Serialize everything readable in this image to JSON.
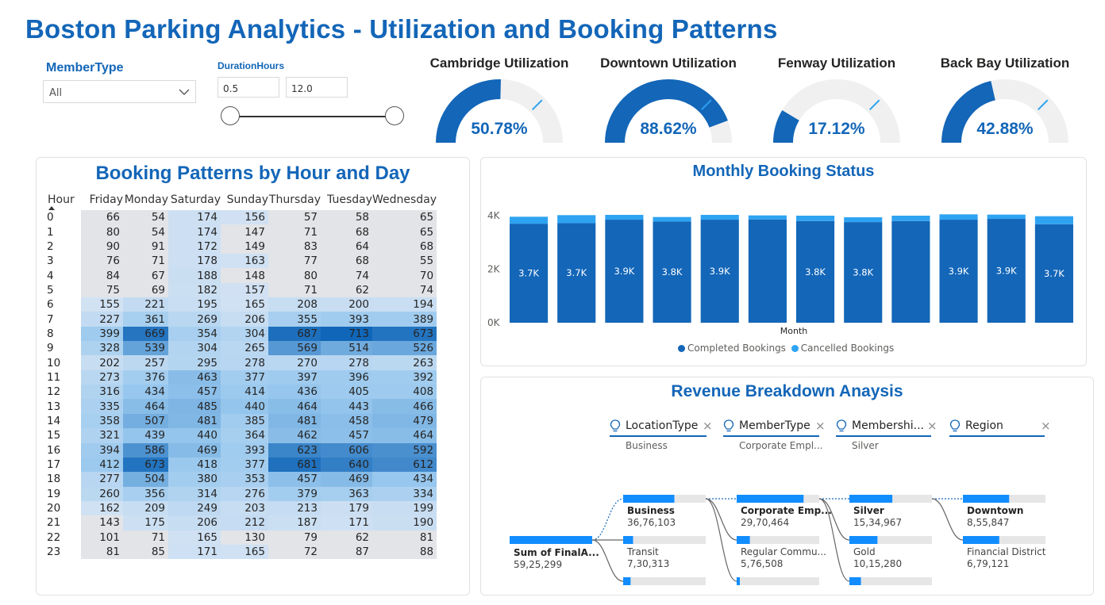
{
  "title": "Boston Parking Analytics - Utilization and Booking Patterns",
  "slicers": {
    "member_type_label": "MemberType",
    "member_type_value": "All",
    "duration_label": "DurationHours",
    "duration_min": "0.5",
    "duration_max": "12.0"
  },
  "gauges": [
    {
      "title": "Cambridge Utilization",
      "value_text": "50.78%",
      "fraction": 0.5078
    },
    {
      "title": "Downtown Utilization",
      "value_text": "88.62%",
      "fraction": 0.8862
    },
    {
      "title": "Fenway Utilization",
      "value_text": "17.12%",
      "fraction": 0.1712
    },
    {
      "title": "Back Bay Utilization",
      "value_text": "42.88%",
      "fraction": 0.4288
    }
  ],
  "heatmap": {
    "title": "Booking Patterns by Hour and Day",
    "columns": [
      "Hour",
      "Friday",
      "Monday",
      "Saturday",
      "Sunday",
      "Thursday",
      "Tuesday",
      "Wednesday"
    ],
    "rows": [
      [
        "0",
        66,
        54,
        174,
        156,
        57,
        58,
        65
      ],
      [
        "1",
        80,
        54,
        174,
        147,
        71,
        68,
        65
      ],
      [
        "2",
        90,
        91,
        172,
        149,
        83,
        64,
        68
      ],
      [
        "3",
        76,
        71,
        178,
        163,
        77,
        68,
        55
      ],
      [
        "4",
        84,
        67,
        188,
        148,
        80,
        74,
        70
      ],
      [
        "5",
        75,
        69,
        182,
        157,
        71,
        62,
        74
      ],
      [
        "6",
        155,
        221,
        195,
        165,
        208,
        200,
        194
      ],
      [
        "7",
        227,
        361,
        269,
        206,
        355,
        393,
        389
      ],
      [
        "8",
        399,
        669,
        354,
        304,
        687,
        713,
        673
      ],
      [
        "9",
        328,
        539,
        304,
        265,
        569,
        514,
        526
      ],
      [
        "10",
        202,
        257,
        295,
        278,
        270,
        278,
        263
      ],
      [
        "11",
        273,
        376,
        463,
        377,
        397,
        396,
        392
      ],
      [
        "12",
        316,
        434,
        457,
        414,
        436,
        405,
        408
      ],
      [
        "13",
        335,
        464,
        485,
        440,
        464,
        443,
        466
      ],
      [
        "14",
        358,
        507,
        481,
        385,
        481,
        458,
        479
      ],
      [
        "15",
        321,
        439,
        440,
        364,
        462,
        457,
        464
      ],
      [
        "16",
        394,
        586,
        469,
        393,
        623,
        606,
        592
      ],
      [
        "17",
        412,
        673,
        418,
        377,
        681,
        640,
        612
      ],
      [
        "18",
        277,
        504,
        380,
        353,
        457,
        469,
        434
      ],
      [
        "19",
        260,
        356,
        314,
        276,
        379,
        363,
        334
      ],
      [
        "20",
        162,
        209,
        249,
        203,
        213,
        179,
        199
      ],
      [
        "21",
        143,
        175,
        206,
        212,
        187,
        171,
        190
      ],
      [
        "22",
        101,
        71,
        165,
        130,
        79,
        62,
        81
      ],
      [
        "23",
        81,
        85,
        171,
        165,
        72,
        87,
        88
      ]
    ]
  },
  "chart_data": {
    "type": "bar",
    "stacked": true,
    "title": "Monthly Booking Status",
    "xlabel": "Month",
    "ylabel": "",
    "ylim": [
      0,
      4000
    ],
    "yticks": [
      "0K",
      "2K",
      "4K"
    ],
    "series": [
      {
        "name": "Completed Bookings",
        "color": "#1366b8",
        "values": [
          3700,
          3720,
          3850,
          3780,
          3850,
          3860,
          3800,
          3760,
          3800,
          3850,
          3880,
          3680
        ],
        "labels": [
          "3.7K",
          "3.7K",
          "3.9K",
          "3.8K",
          "3.9K",
          "",
          "3.8K",
          "3.8K",
          "",
          "3.9K",
          "3.9K",
          "3.7K"
        ]
      },
      {
        "name": "Cancelled Bookings",
        "color": "#2ea3f2",
        "values": [
          260,
          300,
          180,
          170,
          180,
          150,
          200,
          180,
          200,
          200,
          160,
          300
        ]
      }
    ],
    "legend": "bottom-center"
  },
  "decomposition": {
    "title": "Revenue Breakdown Anaysis",
    "fields": [
      {
        "name": "LocationType",
        "selected": "Business"
      },
      {
        "name": "MemberType",
        "selected": "Corporate Empl..."
      },
      {
        "name": "Membershi...",
        "selected": "Silver"
      },
      {
        "name": "Region",
        "selected": ""
      }
    ],
    "root": {
      "label": "Sum of FinalA...",
      "value": "59,25,299"
    },
    "levels": [
      [
        {
          "label": "Business",
          "value": "36,76,103",
          "fraction": 0.62,
          "bold": true
        },
        {
          "label": "Transit",
          "value": "7,30,313",
          "fraction": 0.12,
          "bold": false
        },
        {
          "label": "",
          "value": "",
          "fraction": 0.09,
          "bold": false
        }
      ],
      [
        {
          "label": "Corporate Emp...",
          "value": "29,70,464",
          "fraction": 0.81,
          "bold": true
        },
        {
          "label": "Regular Commu...",
          "value": "5,76,508",
          "fraction": 0.16,
          "bold": false
        },
        {
          "label": "",
          "value": "",
          "fraction": 0.03,
          "bold": false
        }
      ],
      [
        {
          "label": "Silver",
          "value": "15,34,967",
          "fraction": 0.52,
          "bold": true
        },
        {
          "label": "Gold",
          "value": "10,15,280",
          "fraction": 0.34,
          "bold": false
        },
        {
          "label": "",
          "value": "",
          "fraction": 0.14,
          "bold": false
        }
      ],
      [
        {
          "label": "Downtown",
          "value": "8,55,847",
          "fraction": 0.56,
          "bold": true
        },
        {
          "label": "Financial District",
          "value": "6,79,121",
          "fraction": 0.44,
          "bold": false
        }
      ]
    ]
  }
}
